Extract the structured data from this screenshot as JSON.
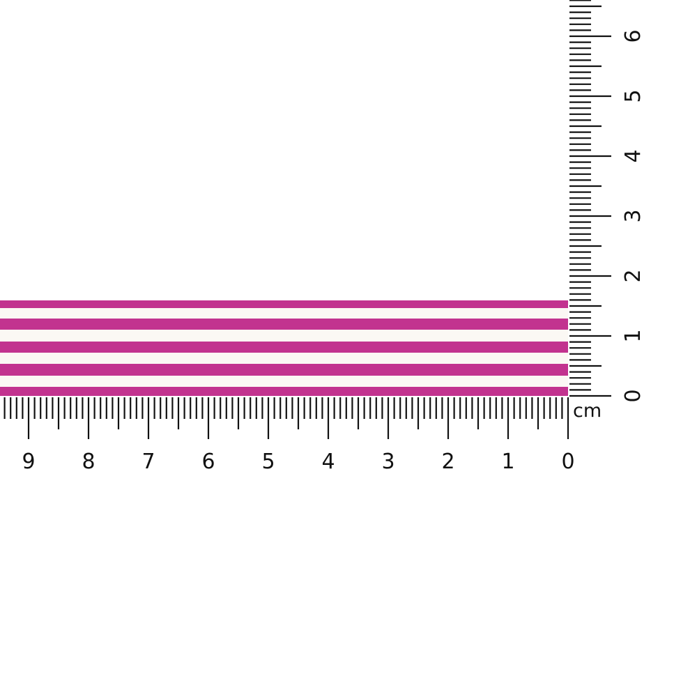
{
  "ribbon": {
    "stripe_color": "#c2338f",
    "base_color": "#fbf8f4",
    "pink_stripe_count": 5,
    "width_cm": 1.6
  },
  "ruler": {
    "unit_label": "cm",
    "horizontal_labels": [
      "0",
      "1",
      "2",
      "3",
      "4",
      "5",
      "6",
      "7",
      "8",
      "9"
    ],
    "vertical_labels": [
      "0",
      "1",
      "2",
      "3",
      "4",
      "5",
      "6"
    ],
    "tick_color": "#111111"
  }
}
